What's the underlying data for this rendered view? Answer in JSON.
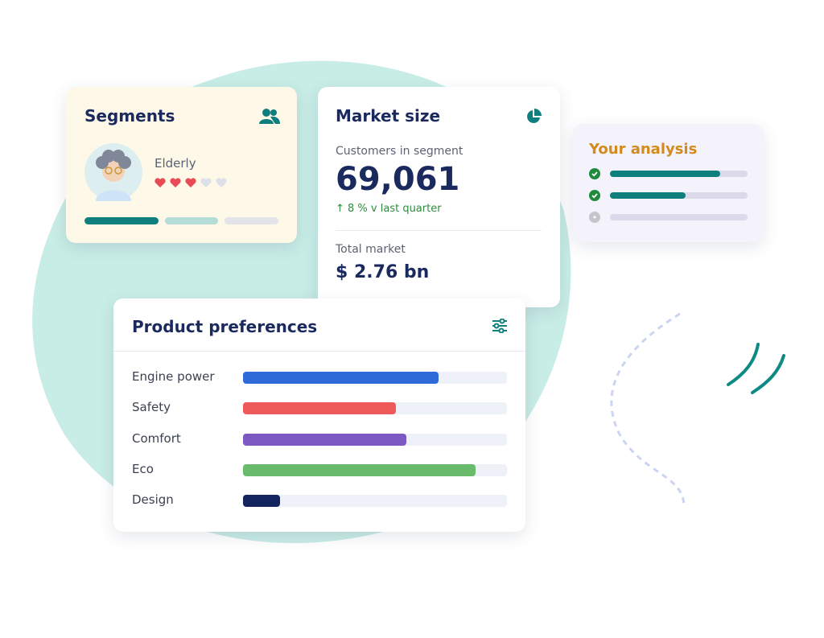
{
  "segment": {
    "title": "Segments",
    "name": "Elderly",
    "rating": 3,
    "rating_max": 5
  },
  "market": {
    "title": "Market size",
    "customers_label": "Customers in segment",
    "customers": "69,061",
    "change": "↑ 8 % v last quarter",
    "total_label": "Total market",
    "total": "$ 2.76 bn"
  },
  "analysis": {
    "title": "Your analysis",
    "max": 100,
    "items": [
      {
        "status": "done",
        "progress": 80
      },
      {
        "status": "done",
        "progress": 55
      },
      {
        "status": "pending",
        "progress": 0
      }
    ]
  },
  "product_preferences": {
    "title": "Product preferences",
    "max": 100,
    "items": [
      {
        "label": "Engine power",
        "value": 74,
        "color": "#2f6ad9"
      },
      {
        "label": "Safety",
        "value": 58,
        "color": "#ee5a5a"
      },
      {
        "label": "Comfort",
        "value": 62,
        "color": "#7c58c2"
      },
      {
        "label": "Eco",
        "value": 88,
        "color": "#67bb6a"
      },
      {
        "label": "Design",
        "value": 14,
        "color": "#14245e"
      }
    ]
  }
}
